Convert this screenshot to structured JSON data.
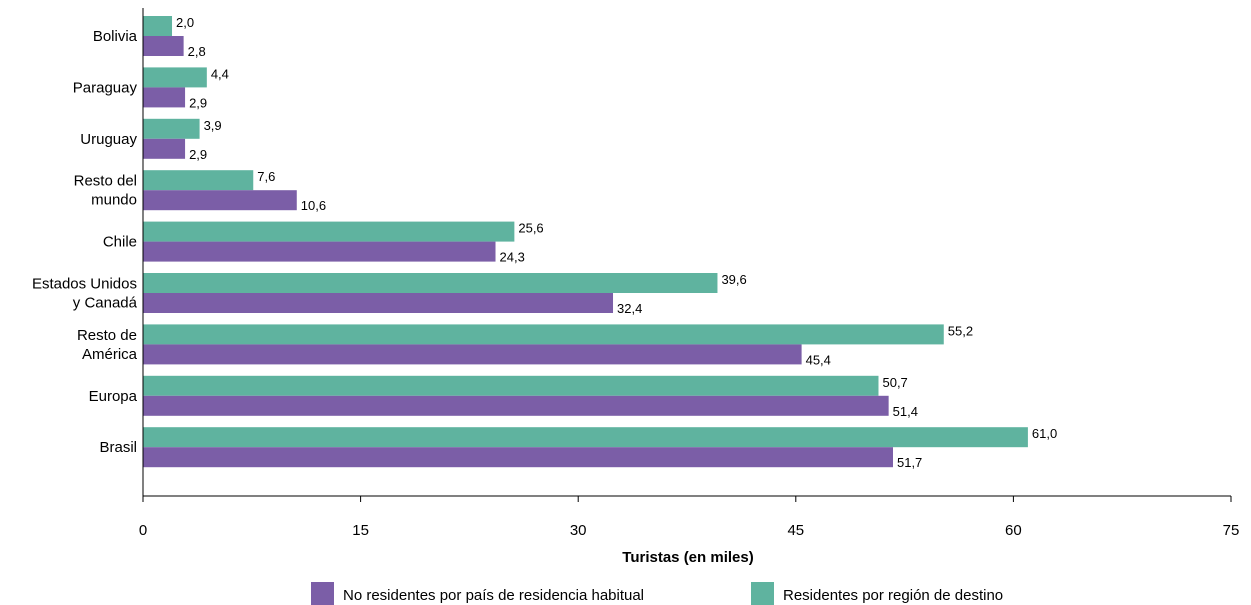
{
  "chart_data": {
    "type": "bar",
    "orientation": "horizontal",
    "categories": [
      [
        "Bolivia"
      ],
      [
        "Paraguay"
      ],
      [
        "Uruguay"
      ],
      [
        "Resto del",
        "mundo"
      ],
      [
        "Chile"
      ],
      [
        "Estados Unidos",
        "y Canadá"
      ],
      [
        "Resto de",
        "América"
      ],
      [
        "Europa"
      ],
      [
        "Brasil"
      ]
    ],
    "series": [
      {
        "name": "Residentes por región de destino",
        "color": "#5fb39f",
        "values": [
          2.0,
          4.4,
          3.9,
          7.6,
          25.6,
          39.6,
          55.2,
          50.7,
          61.0
        ],
        "labels": [
          "2,0",
          "4,4",
          "3,9",
          "7,6",
          "25,6",
          "39,6",
          "55,2",
          "50,7",
          "61,0"
        ]
      },
      {
        "name": "No residentes por país de residencia habitual",
        "color": "#7b5ea7",
        "values": [
          2.8,
          2.9,
          2.9,
          10.6,
          24.3,
          32.4,
          45.4,
          51.4,
          51.7
        ],
        "labels": [
          "2,8",
          "2,9",
          "2,9",
          "10,6",
          "24,3",
          "32,4",
          "45,4",
          "51,4",
          "51,7"
        ]
      }
    ],
    "xlim": [
      0,
      75
    ],
    "xticks": [
      0,
      15,
      30,
      45,
      60,
      75
    ],
    "xlabel": "Turistas (en miles)",
    "ylabel": "",
    "title": "",
    "grid": false,
    "legend": {
      "position": "bottom",
      "order": [
        1,
        0
      ]
    }
  }
}
